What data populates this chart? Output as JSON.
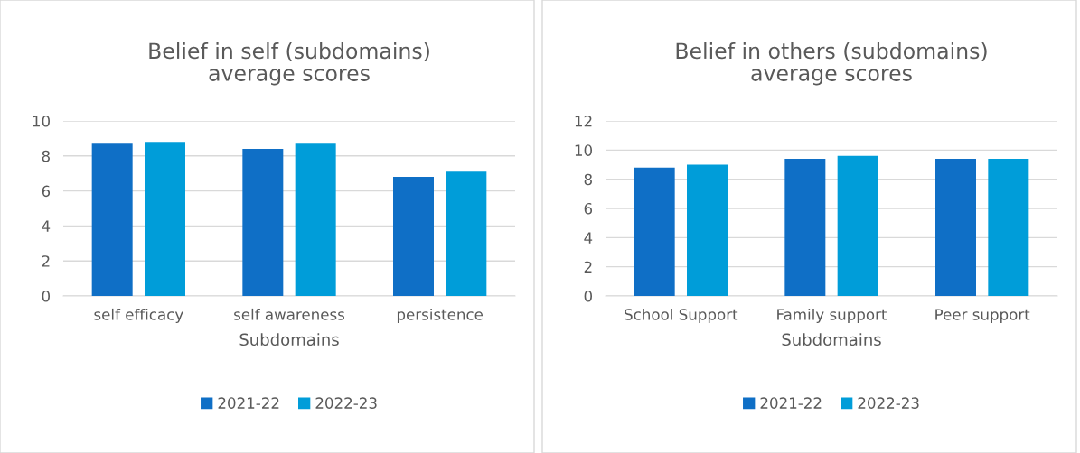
{
  "chart_data": [
    {
      "type": "bar",
      "title": "Belief in self (subdomains)\naverage scores",
      "xlabel": "Subdomains",
      "categories": [
        "self efficacy",
        "self awareness",
        "persistence"
      ],
      "series": [
        {
          "name": "2021-22",
          "color": "#0f6fc6",
          "values": [
            8.7,
            8.4,
            6.8
          ]
        },
        {
          "name": "2022-23",
          "color": "#009dd9",
          "values": [
            8.8,
            8.7,
            7.1
          ]
        }
      ],
      "ylim": [
        0,
        10
      ],
      "yticks": [
        0,
        2,
        4,
        6,
        8,
        10
      ],
      "grid": "y",
      "legend": "bottom"
    },
    {
      "type": "bar",
      "title": "Belief in others (subdomains)\naverage scores",
      "xlabel": "Subdomains",
      "categories": [
        "School Support",
        "Family support",
        "Peer support"
      ],
      "series": [
        {
          "name": "2021-22",
          "color": "#0f6fc6",
          "values": [
            8.8,
            9.4,
            9.4
          ]
        },
        {
          "name": "2022-23",
          "color": "#009dd9",
          "values": [
            9.0,
            9.6,
            9.4
          ]
        }
      ],
      "ylim": [
        0,
        12
      ],
      "yticks": [
        0,
        2,
        4,
        6,
        8,
        10,
        12
      ],
      "grid": "y",
      "legend": "bottom"
    }
  ]
}
